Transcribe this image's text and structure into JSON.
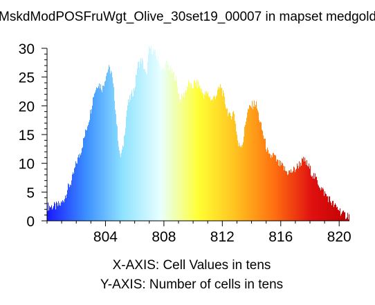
{
  "chart_data": {
    "type": "bar",
    "title": "MskdModPOSFruWgt_Olive_30set19_00007 in mapset medgold",
    "xlabel": "X-AXIS: Cell Values in tens",
    "ylabel": "Y-AXIS: Number of cells in tens",
    "xlim": [
      800.0,
      820.7
    ],
    "ylim": [
      0,
      30
    ],
    "x_ticks": [
      "804",
      "808",
      "812",
      "816",
      "820"
    ],
    "y_ticks": [
      "0",
      "5",
      "10",
      "15",
      "20",
      "25",
      "30"
    ],
    "grid": false,
    "legend": "none",
    "color_scale": [
      "#1a1aff",
      "#3a8dff",
      "#8fe3ff",
      "#e8ffff",
      "#ffff33",
      "#ffc020",
      "#ff7010",
      "#e01010",
      "#c00000"
    ],
    "profile_x": [
      800.0,
      800.6,
      801.0,
      801.2,
      801.4,
      801.7,
      801.9,
      802.0,
      802.3,
      802.6,
      802.9,
      803.2,
      803.5,
      803.8,
      804.0,
      804.2,
      804.4,
      804.6,
      804.8,
      805.0,
      805.2,
      805.5,
      805.8,
      806.0,
      806.2,
      806.5,
      806.8,
      807.0,
      807.3,
      807.6,
      807.9,
      808.2,
      808.5,
      808.8,
      809.1,
      809.4,
      809.7,
      809.9,
      810.1,
      810.4,
      810.7,
      811.0,
      811.3,
      811.6,
      811.9,
      812.2,
      812.5,
      812.8,
      813.1,
      813.4,
      813.7,
      814.0,
      814.3,
      814.6,
      814.9,
      815.2,
      815.5,
      815.8,
      816.1,
      816.4,
      816.7,
      817.0,
      817.3,
      817.6,
      817.9,
      818.2,
      818.5,
      818.8,
      819.1,
      819.4,
      819.7,
      820.0,
      820.3,
      820.6
    ],
    "profile_y": [
      2.5,
      2.5,
      3.0,
      4.0,
      5.5,
      7.0,
      9.0,
      10.0,
      12.0,
      15.0,
      18.0,
      22.0,
      24.0,
      23.0,
      25.0,
      26.5,
      26.0,
      22.0,
      16.0,
      11.0,
      12.5,
      20.0,
      22.0,
      23.0,
      27.0,
      28.0,
      25.0,
      30.0,
      29.5,
      28.0,
      26.0,
      27.5,
      26.0,
      25.0,
      21.0,
      22.0,
      24.0,
      23.0,
      24.0,
      23.5,
      22.0,
      22.0,
      21.0,
      22.0,
      23.5,
      20.5,
      18.0,
      19.0,
      13.0,
      13.5,
      19.0,
      20.0,
      20.5,
      17.0,
      14.0,
      11.0,
      11.5,
      10.0,
      9.5,
      8.5,
      8.5,
      9.0,
      10.0,
      10.5,
      9.5,
      8.0,
      7.0,
      5.5,
      4.5,
      3.5,
      2.5,
      2.0,
      1.0,
      1.0
    ]
  }
}
